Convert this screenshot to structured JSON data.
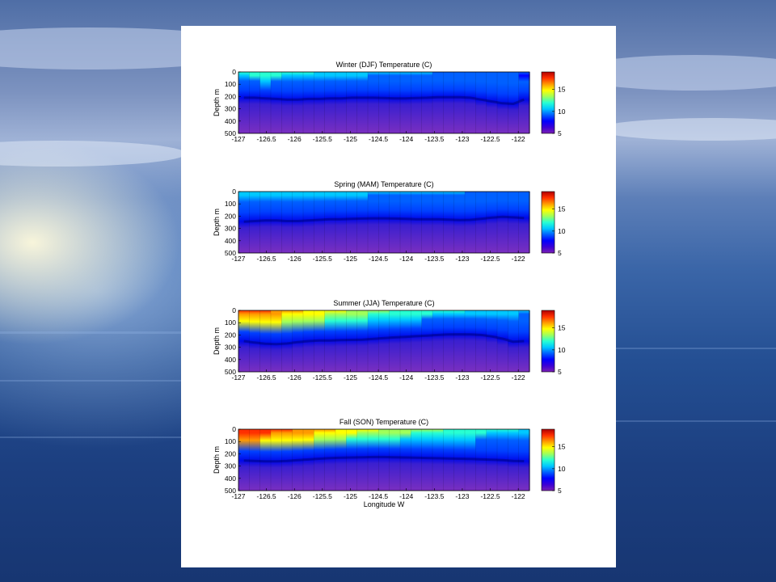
{
  "colors": {
    "slide_background": "#244f93",
    "panel_background": "#ffffff",
    "colormap": [
      "#7b1fb3",
      "#3a00d6",
      "#0000ff",
      "#0060ff",
      "#00c8ff",
      "#28ffd2",
      "#a0ff5a",
      "#ffff00",
      "#ff9a00",
      "#ff3000",
      "#b00000"
    ]
  },
  "chart_data": [
    {
      "type": "heatmap",
      "title": "Winter (DJF) Temperature (C)",
      "xlabel": "",
      "ylabel": "Depth m",
      "x_ticks": [
        "-127",
        "-126.5",
        "-126",
        "-125.5",
        "-125",
        "-124.5",
        "-124",
        "-123.5",
        "-123",
        "-122.5",
        "-122"
      ],
      "y_ticks": [
        "0",
        "100",
        "200",
        "300",
        "400",
        "500"
      ],
      "xlim": [
        -127,
        -121.8
      ],
      "ylim": [
        0,
        500
      ],
      "colorbar": {
        "ticks": [
          "15",
          "10",
          "5"
        ],
        "range": [
          5,
          19
        ]
      },
      "surface_temp": [
        11.8,
        12.0,
        12.2,
        12.0,
        11.8,
        11.6,
        11.4,
        11.2,
        11.0,
        10.8,
        10.6,
        10.6,
        10.4,
        10.4,
        10.2,
        10.2,
        10.0,
        10.0,
        9.8,
        9.8,
        9.6,
        9.6,
        9.4,
        9.4,
        9.2,
        9.2,
        9.0
      ],
      "thermocline_depth": [
        210,
        210,
        215,
        220,
        225,
        225,
        220,
        220,
        215,
        215,
        210,
        210,
        210,
        212,
        215,
        215,
        212,
        210,
        205,
        205,
        205,
        210,
        225,
        240,
        255,
        260,
        225
      ]
    },
    {
      "type": "heatmap",
      "title": "Spring (MAM) Temperature (C)",
      "xlabel": "",
      "ylabel": "Depth m",
      "x_ticks": [
        "-127",
        "-126.5",
        "-126",
        "-125.5",
        "-125",
        "-124.5",
        "-124",
        "-123.5",
        "-123",
        "-122.5",
        "-122"
      ],
      "y_ticks": [
        "0",
        "100",
        "200",
        "300",
        "400",
        "500"
      ],
      "xlim": [
        -127,
        -121.8
      ],
      "ylim": [
        0,
        500
      ],
      "colorbar": {
        "ticks": [
          "15",
          "10",
          "5"
        ],
        "range": [
          5,
          19
        ]
      },
      "surface_temp": [
        11.2,
        11.2,
        11.2,
        11.0,
        11.0,
        11.0,
        10.8,
        10.8,
        10.8,
        10.6,
        10.6,
        10.6,
        10.4,
        10.4,
        10.4,
        10.2,
        10.2,
        10.2,
        10.0,
        10.0,
        10.0,
        9.8,
        9.8,
        9.6,
        9.6,
        9.4,
        9.4
      ],
      "thermocline_depth": [
        245,
        240,
        235,
        235,
        240,
        240,
        235,
        230,
        225,
        225,
        222,
        220,
        218,
        218,
        220,
        222,
        225,
        225,
        225,
        228,
        232,
        230,
        222,
        212,
        205,
        210,
        215
      ]
    },
    {
      "type": "heatmap",
      "title": "Summer (JJA) Temperature (C)",
      "xlabel": "",
      "ylabel": "Depth m",
      "x_ticks": [
        "-127",
        "-126.5",
        "-126",
        "-125.5",
        "-125",
        "-124.5",
        "-124",
        "-123.5",
        "-123",
        "-122.5",
        "-122"
      ],
      "y_ticks": [
        "0",
        "100",
        "200",
        "300",
        "400",
        "500"
      ],
      "xlim": [
        -127,
        -121.8
      ],
      "ylim": [
        0,
        500
      ],
      "colorbar": {
        "ticks": [
          "15",
          "10",
          "5"
        ],
        "range": [
          5,
          19
        ]
      },
      "surface_temp": [
        17.5,
        17.2,
        17.0,
        16.5,
        16.0,
        15.5,
        15.2,
        15.0,
        14.6,
        14.2,
        14.0,
        13.6,
        13.2,
        13.0,
        12.6,
        12.4,
        12.2,
        12.0,
        11.8,
        11.6,
        11.4,
        11.2,
        11.0,
        10.8,
        10.6,
        10.6,
        10.4
      ],
      "thermocline_depth": [
        250,
        262,
        272,
        275,
        270,
        258,
        250,
        245,
        245,
        242,
        240,
        238,
        232,
        225,
        220,
        215,
        210,
        205,
        200,
        196,
        195,
        196,
        200,
        212,
        230,
        255,
        250
      ]
    },
    {
      "type": "heatmap",
      "title": "Fall (SON)   Temperature (C)",
      "xlabel": "Longitude W",
      "ylabel": "Depth m",
      "x_ticks": [
        "-127",
        "-126.5",
        "-126",
        "-125.5",
        "-125",
        "-124.5",
        "-124",
        "-123.5",
        "-123",
        "-122.5",
        "-122"
      ],
      "y_ticks": [
        "0",
        "100",
        "200",
        "300",
        "400",
        "500"
      ],
      "xlim": [
        -127,
        -121.8
      ],
      "ylim": [
        0,
        500
      ],
      "colorbar": {
        "ticks": [
          "15",
          "10",
          "5"
        ],
        "range": [
          5,
          19
        ]
      },
      "surface_temp": [
        17.8,
        17.8,
        17.6,
        17.4,
        17.2,
        16.8,
        16.4,
        16.0,
        15.6,
        15.2,
        14.8,
        14.6,
        14.4,
        14.0,
        13.6,
        13.4,
        13.2,
        13.0,
        12.8,
        12.6,
        12.4,
        12.2,
        12.0,
        11.8,
        11.6,
        11.4,
        11.2
      ],
      "thermocline_depth": [
        255,
        258,
        262,
        262,
        258,
        252,
        246,
        240,
        235,
        232,
        230,
        228,
        226,
        226,
        228,
        230,
        232,
        234,
        236,
        238,
        240,
        242,
        245,
        248,
        252,
        258,
        260
      ]
    }
  ]
}
